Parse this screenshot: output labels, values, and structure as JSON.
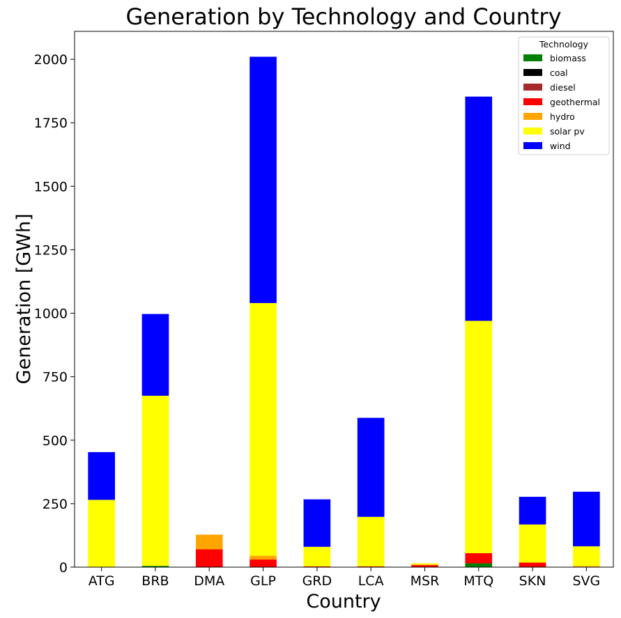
{
  "chart_data": {
    "type": "bar",
    "stacked": true,
    "title": "Generation by Technology and Country",
    "xlabel": "Country",
    "ylabel": "Generation [GWh]",
    "ylim": [
      0,
      2110
    ],
    "yticks": [
      0,
      250,
      500,
      750,
      1000,
      1250,
      1500,
      1750,
      2000
    ],
    "categories": [
      "ATG",
      "BRB",
      "DMA",
      "GLP",
      "GRD",
      "LCA",
      "MSR",
      "MTQ",
      "SKN",
      "SVG"
    ],
    "legend": {
      "title": "Technology",
      "placement": "top-right"
    },
    "grid": false,
    "series": [
      {
        "name": "biomass",
        "color": "#008000",
        "values": [
          0,
          5,
          0,
          0,
          0,
          0,
          0,
          15,
          0,
          0
        ]
      },
      {
        "name": "coal",
        "color": "#000000",
        "values": [
          0,
          0,
          0,
          0,
          0,
          0,
          0,
          0,
          0,
          0
        ]
      },
      {
        "name": "diesel",
        "color": "#a52a2a",
        "values": [
          0,
          0,
          0,
          0,
          0,
          0,
          0,
          0,
          0,
          0
        ]
      },
      {
        "name": "geothermal",
        "color": "#ff0000",
        "values": [
          0,
          0,
          70,
          30,
          3,
          3,
          8,
          40,
          18,
          2
        ]
      },
      {
        "name": "hydro",
        "color": "#ffa500",
        "values": [
          0,
          0,
          58,
          15,
          0,
          0,
          2,
          0,
          0,
          2
        ]
      },
      {
        "name": "solar pv",
        "color": "#ffff00",
        "values": [
          265,
          670,
          0,
          995,
          77,
          195,
          5,
          915,
          150,
          78
        ]
      },
      {
        "name": "wind",
        "color": "#0000ff",
        "values": [
          188,
          322,
          0,
          970,
          187,
          390,
          0,
          883,
          109,
          215
        ]
      }
    ]
  }
}
